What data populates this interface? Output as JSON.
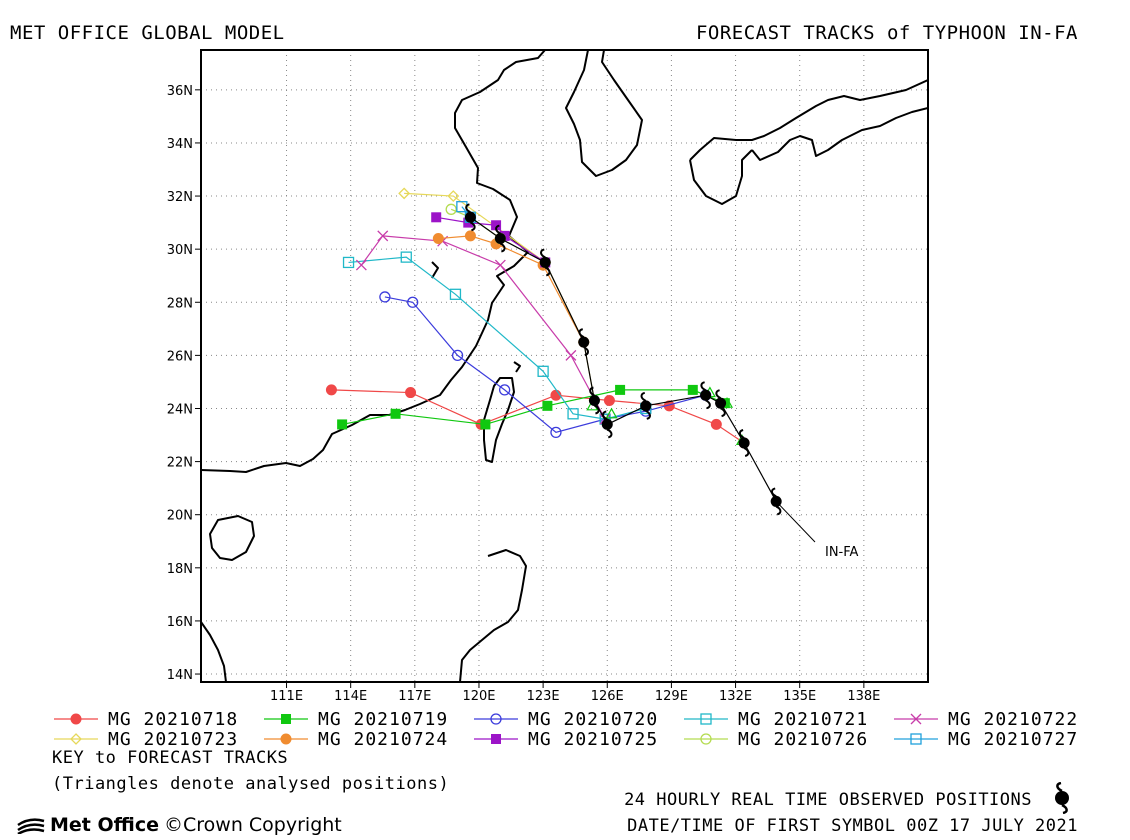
{
  "header": {
    "left_title": "MET OFFICE GLOBAL MODEL",
    "right_title": "FORECAST TRACKS of TYPHOON IN-FA"
  },
  "map": {
    "lon_range": [
      107,
      141
    ],
    "lat_range": [
      13.7,
      37.5
    ],
    "lon_ticks": [
      111,
      114,
      117,
      120,
      123,
      126,
      129,
      132,
      135,
      138
    ],
    "lon_tick_labels": [
      "111E",
      "114E",
      "117E",
      "120E",
      "123E",
      "126E",
      "129E",
      "132E",
      "135E",
      "138E"
    ],
    "lat_ticks": [
      14,
      16,
      18,
      20,
      22,
      24,
      26,
      28,
      30,
      32,
      34,
      36
    ],
    "lat_tick_labels": [
      "14N",
      "16N",
      "18N",
      "20N",
      "22N",
      "24N",
      "26N",
      "28N",
      "30N",
      "32N",
      "34N",
      "36N"
    ],
    "grid": true,
    "storm_label": "IN-FA",
    "observed_track": [
      [
        133.9,
        20.5
      ],
      [
        132.4,
        22.7
      ],
      [
        131.3,
        24.2
      ],
      [
        130.6,
        24.5
      ],
      [
        127.8,
        24.1
      ],
      [
        126.0,
        23.4
      ],
      [
        125.4,
        24.3
      ],
      [
        124.9,
        26.5
      ],
      [
        123.1,
        29.5
      ],
      [
        121.0,
        30.4
      ],
      [
        119.6,
        31.2
      ]
    ],
    "analysed_triangles": [
      [
        131.6,
        24.2
      ],
      [
        130.8,
        24.6
      ],
      [
        132.3,
        22.8
      ],
      [
        126.2,
        23.8
      ],
      [
        125.3,
        24.1
      ]
    ]
  },
  "tracks": [
    {
      "label": "MG 20210718",
      "color": "#f04848",
      "marker": "filled-circle",
      "points": [
        [
          132.4,
          22.7
        ],
        [
          131.1,
          23.4
        ],
        [
          128.9,
          24.1
        ],
        [
          126.1,
          24.3
        ],
        [
          123.6,
          24.5
        ],
        [
          120.1,
          23.4
        ],
        [
          116.8,
          24.6
        ],
        [
          113.1,
          24.7
        ]
      ]
    },
    {
      "label": "MG 20210719",
      "color": "#10c810",
      "marker": "filled-square",
      "points": [
        [
          131.5,
          24.2
        ],
        [
          130.0,
          24.7
        ],
        [
          126.6,
          24.7
        ],
        [
          123.2,
          24.1
        ],
        [
          120.3,
          23.4
        ],
        [
          116.1,
          23.8
        ],
        [
          113.6,
          23.4
        ]
      ]
    },
    {
      "label": "MG 20210720",
      "color": "#3c3cdc",
      "marker": "open-circle",
      "points": [
        [
          130.6,
          24.5
        ],
        [
          127.8,
          23.9
        ],
        [
          125.9,
          23.6
        ],
        [
          123.6,
          23.1
        ],
        [
          121.2,
          24.7
        ],
        [
          119.0,
          26.0
        ],
        [
          116.9,
          28.0
        ],
        [
          115.6,
          28.2
        ]
      ]
    },
    {
      "label": "MG 20210721",
      "color": "#20b8c8",
      "marker": "open-square",
      "points": [
        [
          127.8,
          24.0
        ],
        [
          125.9,
          23.6
        ],
        [
          124.4,
          23.8
        ],
        [
          123.0,
          25.4
        ],
        [
          118.9,
          28.3
        ],
        [
          116.6,
          29.7
        ],
        [
          113.9,
          29.5
        ]
      ]
    },
    {
      "label": "MG 20210722",
      "color": "#c83caa",
      "marker": "x",
      "points": [
        [
          125.9,
          23.6
        ],
        [
          124.3,
          26.0
        ],
        [
          121.0,
          29.4
        ],
        [
          118.3,
          30.3
        ],
        [
          115.5,
          30.5
        ],
        [
          114.5,
          29.4
        ]
      ]
    },
    {
      "label": "MG 20210723",
      "color": "#e6d85a",
      "marker": "open-diamond",
      "points": [
        [
          125.4,
          24.3
        ],
        [
          124.9,
          26.5
        ],
        [
          123.1,
          29.5
        ],
        [
          118.8,
          32.0
        ],
        [
          116.5,
          32.1
        ]
      ]
    },
    {
      "label": "MG 20210724",
      "color": "#f08c30",
      "marker": "filled-circle",
      "points": [
        [
          124.9,
          26.5
        ],
        [
          123.0,
          29.4
        ],
        [
          120.8,
          30.2
        ],
        [
          119.6,
          30.5
        ],
        [
          118.1,
          30.4
        ]
      ]
    },
    {
      "label": "MG 20210725",
      "color": "#9c14c8",
      "marker": "filled-square",
      "points": [
        [
          123.1,
          29.5
        ],
        [
          121.2,
          30.5
        ],
        [
          120.8,
          30.9
        ],
        [
          119.5,
          31.0
        ],
        [
          118.0,
          31.2
        ]
      ]
    },
    {
      "label": "MG 20210726",
      "color": "#b4dc50",
      "marker": "open-circle",
      "points": [
        [
          121.0,
          30.4
        ],
        [
          119.6,
          31.2
        ],
        [
          118.7,
          31.5
        ]
      ]
    },
    {
      "label": "MG 20210727",
      "color": "#20a0dc",
      "marker": "open-square",
      "points": [
        [
          119.6,
          31.2
        ],
        [
          119.2,
          31.6
        ]
      ]
    }
  ],
  "footer": {
    "key_title": "KEY to FORECAST TRACKS",
    "key_note": "(Triangles denote analysed positions)",
    "observed_note": "24 HOURLY REAL TIME OBSERVED POSITIONS",
    "datetime_note": "DATE/TIME OF FIRST SYMBOL 00Z 17 JULY 2021",
    "logo_text": "Met Office",
    "copyright": "©Crown Copyright"
  },
  "icons": [
    "typhoon-symbol-icon",
    "met-office-logo-icon"
  ]
}
